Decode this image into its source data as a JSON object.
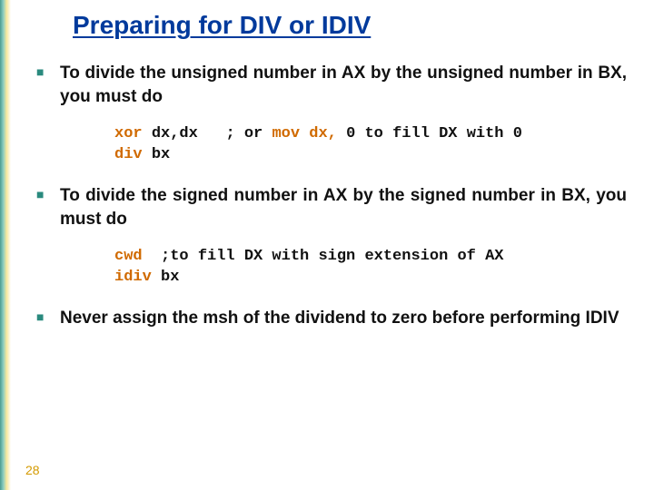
{
  "colors": {
    "title_color": "#003a9c",
    "bullet_marker": "#2a8a7e",
    "code_keyword": "#d06a00",
    "page_num_color": "#d49a00",
    "background": "#ffffff"
  },
  "typography": {
    "title_fontsize": 28,
    "body_fontsize": 19,
    "code_fontsize": 17,
    "body_font": "Arial",
    "code_font": "Courier New"
  },
  "title": "Preparing for DIV or IDIV",
  "bullets": [
    {
      "text": "To divide the unsigned number in AX by the unsigned number in BX, you must do",
      "code_lines": [
        {
          "instr": "xor ",
          "arg": "dx,dx",
          "gap": "   ",
          "comment": "; or ",
          "kw": "mov dx,",
          "tail": " 0 to fill DX with 0"
        },
        {
          "instr": "div ",
          "arg": "bx",
          "gap": "",
          "comment": "",
          "kw": "",
          "tail": ""
        }
      ]
    },
    {
      "text": "To divide the signed number in AX by the signed number in BX, you must do",
      "code_lines": [
        {
          "instr": "cwd",
          "arg": "",
          "gap": "  ",
          "comment": ";to fill DX with sign extension of AX",
          "kw": "",
          "tail": ""
        },
        {
          "instr": "idiv ",
          "arg": "bx",
          "gap": "",
          "comment": "",
          "kw": "",
          "tail": ""
        }
      ]
    },
    {
      "text": "Never assign the msh of the dividend to zero before performing IDIV",
      "code_lines": []
    }
  ],
  "page_number": "28"
}
